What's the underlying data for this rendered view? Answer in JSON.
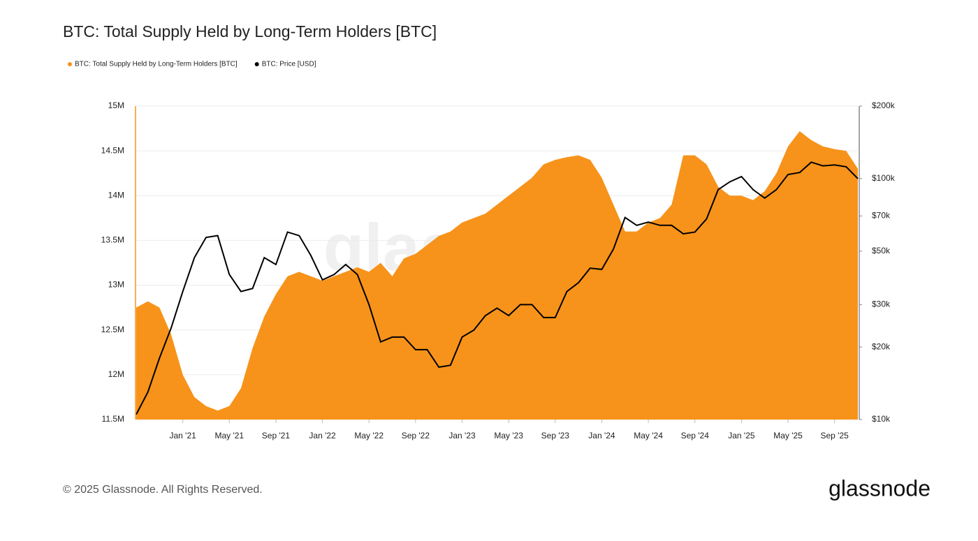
{
  "chart_data": {
    "type": "area-line",
    "title": "BTC: Total Supply Held by Long-Term Holders [BTC]",
    "x": [
      "2020-09",
      "2020-10",
      "2020-11",
      "2020-12",
      "2021-01",
      "2021-02",
      "2021-03",
      "2021-04",
      "2021-05",
      "2021-06",
      "2021-07",
      "2021-08",
      "2021-09",
      "2021-10",
      "2021-11",
      "2021-12",
      "2022-01",
      "2022-02",
      "2022-03",
      "2022-04",
      "2022-05",
      "2022-06",
      "2022-07",
      "2022-08",
      "2022-09",
      "2022-10",
      "2022-11",
      "2022-12",
      "2023-01",
      "2023-02",
      "2023-03",
      "2023-04",
      "2023-05",
      "2023-06",
      "2023-07",
      "2023-08",
      "2023-09",
      "2023-10",
      "2023-11",
      "2023-12",
      "2024-01",
      "2024-02",
      "2024-03",
      "2024-04",
      "2024-05",
      "2024-06",
      "2024-07",
      "2024-08",
      "2024-09",
      "2024-10",
      "2024-11",
      "2024-12",
      "2025-01",
      "2025-02",
      "2025-03",
      "2025-04",
      "2025-05",
      "2025-06",
      "2025-07",
      "2025-08",
      "2025-09",
      "2025-10",
      "2025-11"
    ],
    "series": [
      {
        "name": "BTC: Total Supply Held by Long-Term Holders [BTC]",
        "color": "#f7931a",
        "kind": "area",
        "axis": "y",
        "values": [
          12750000,
          12820000,
          12750000,
          12450000,
          12000000,
          11750000,
          11650000,
          11600000,
          11650000,
          11850000,
          12300000,
          12650000,
          12900000,
          13100000,
          13150000,
          13100000,
          13050000,
          13100000,
          13150000,
          13200000,
          13150000,
          13250000,
          13100000,
          13300000,
          13350000,
          13450000,
          13550000,
          13600000,
          13700000,
          13750000,
          13800000,
          13900000,
          14000000,
          14100000,
          14200000,
          14350000,
          14400000,
          14430000,
          14450000,
          14400000,
          14200000,
          13900000,
          13600000,
          13600000,
          13700000,
          13750000,
          13900000,
          14450000,
          14450000,
          14350000,
          14100000,
          14000000,
          14000000,
          13950000,
          14050000,
          14250000,
          14550000,
          14720000,
          14620000,
          14550000,
          14520000,
          14500000,
          14300000
        ]
      },
      {
        "name": "BTC: Price [USD]",
        "color": "#000000",
        "kind": "line",
        "axis": "y2",
        "values": [
          10500,
          13000,
          18000,
          24000,
          34000,
          47000,
          57000,
          58000,
          40000,
          34000,
          35000,
          47000,
          44000,
          60000,
          58000,
          48000,
          38000,
          40000,
          44000,
          40000,
          30000,
          21000,
          22000,
          22000,
          19500,
          19500,
          16500,
          16800,
          22000,
          23500,
          27000,
          29000,
          27000,
          30000,
          30000,
          26500,
          26500,
          34000,
          37000,
          42500,
          42000,
          51000,
          69000,
          64000,
          66000,
          64000,
          64000,
          59000,
          60000,
          68000,
          90000,
          97000,
          102000,
          90000,
          83000,
          90000,
          104000,
          106000,
          117000,
          113000,
          114000,
          112000,
          100000
        ]
      }
    ],
    "xlim": [
      "2020-09",
      "2025-11"
    ],
    "xticks": [
      {
        "value": "2021-01",
        "label": "Jan '21"
      },
      {
        "value": "2021-05",
        "label": "May '21"
      },
      {
        "value": "2021-09",
        "label": "Sep '21"
      },
      {
        "value": "2022-01",
        "label": "Jan '22"
      },
      {
        "value": "2022-05",
        "label": "May '22"
      },
      {
        "value": "2022-09",
        "label": "Sep '22"
      },
      {
        "value": "2023-01",
        "label": "Jan '23"
      },
      {
        "value": "2023-05",
        "label": "May '23"
      },
      {
        "value": "2023-09",
        "label": "Sep '23"
      },
      {
        "value": "2024-01",
        "label": "Jan '24"
      },
      {
        "value": "2024-05",
        "label": "May '24"
      },
      {
        "value": "2024-09",
        "label": "Sep '24"
      },
      {
        "value": "2025-01",
        "label": "Jan '25"
      },
      {
        "value": "2025-05",
        "label": "May '25"
      },
      {
        "value": "2025-09",
        "label": "Sep '25"
      }
    ],
    "ylim": [
      11500000,
      15000000
    ],
    "yticks": [
      {
        "value": 11500000,
        "label": "11.5M"
      },
      {
        "value": 12000000,
        "label": "12M"
      },
      {
        "value": 12500000,
        "label": "12.5M"
      },
      {
        "value": 13000000,
        "label": "13M"
      },
      {
        "value": 13500000,
        "label": "13.5M"
      },
      {
        "value": 14000000,
        "label": "14M"
      },
      {
        "value": 14500000,
        "label": "14.5M"
      },
      {
        "value": 15000000,
        "label": "15M"
      }
    ],
    "y2lim": [
      10000,
      200000
    ],
    "y2log": true,
    "y2ticks": [
      {
        "value": 10000,
        "label": "$10k"
      },
      {
        "value": 20000,
        "label": "$20k"
      },
      {
        "value": 30000,
        "label": "$30k"
      },
      {
        "value": 50000,
        "label": "$50k"
      },
      {
        "value": 70000,
        "label": "$70k"
      },
      {
        "value": 100000,
        "label": "$100k"
      },
      {
        "value": 200000,
        "label": "$200k"
      }
    ],
    "grid": true,
    "legend": "top-left"
  },
  "watermark": "glassnode",
  "footer": {
    "copyright": "© 2025 Glassnode. All Rights Reserved.",
    "logo": "glassnode"
  }
}
